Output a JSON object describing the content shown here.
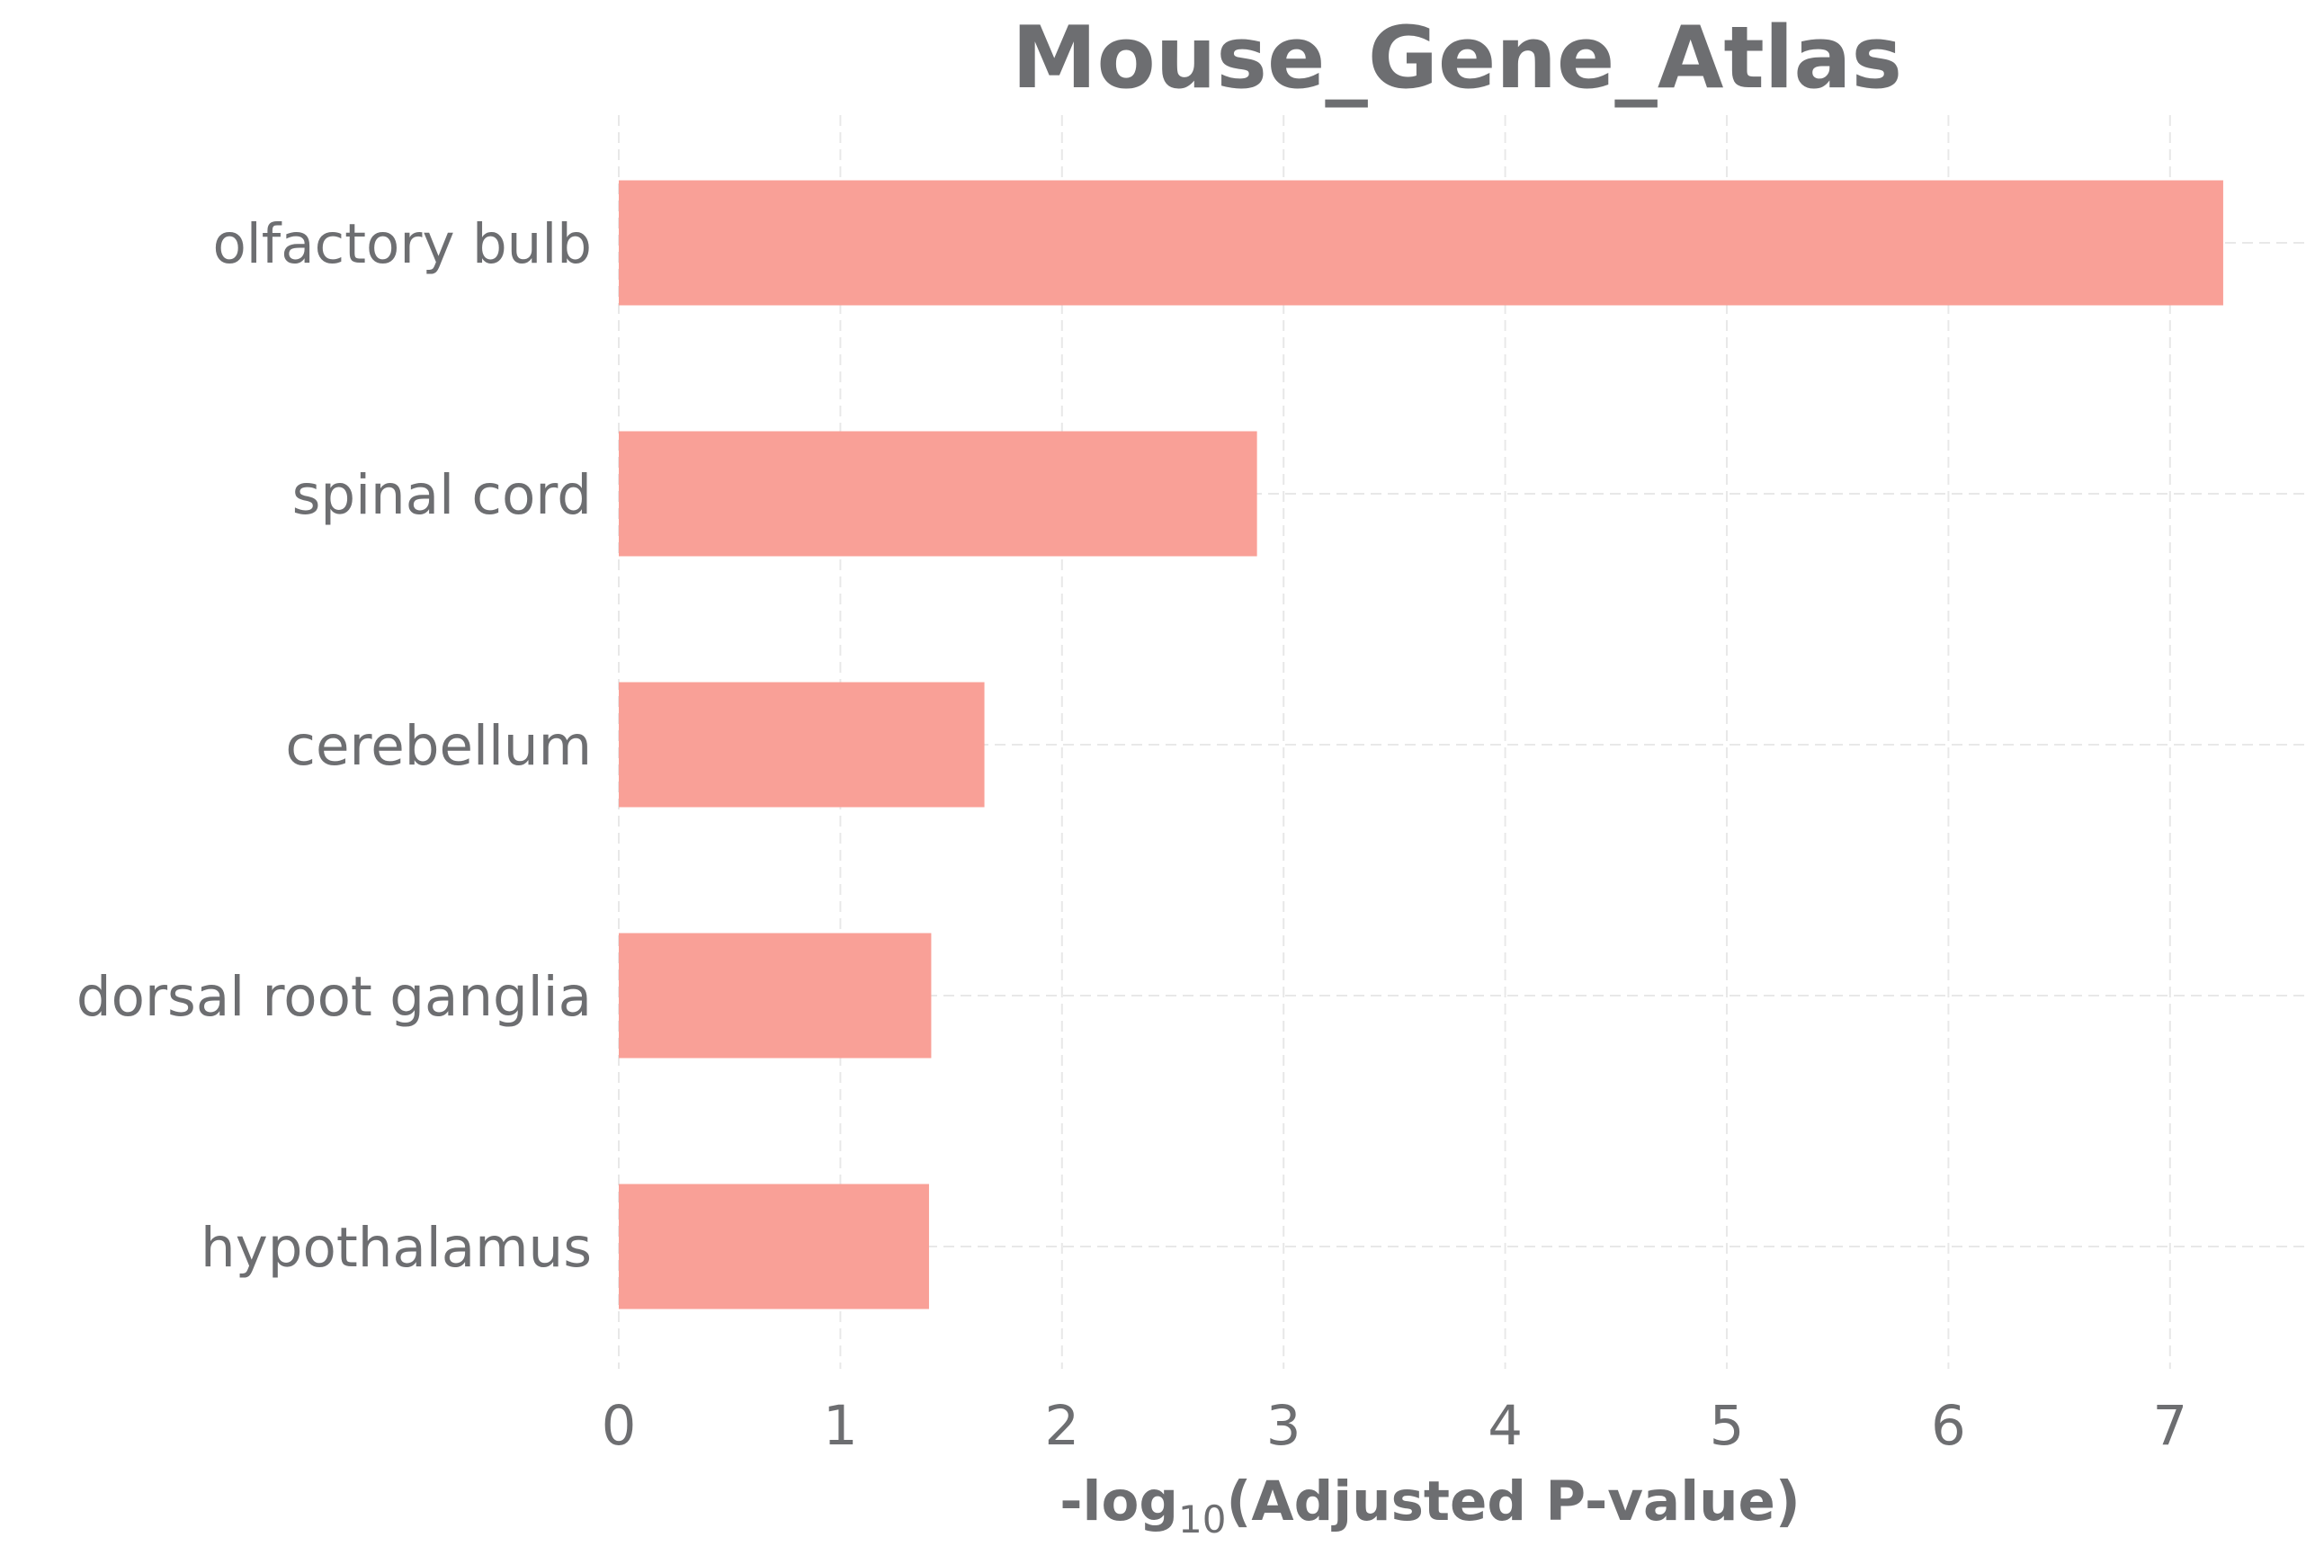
{
  "chart_data": {
    "type": "bar",
    "orientation": "horizontal",
    "title": "Mouse_Gene_Atlas",
    "xlabel": {
      "prefix": "-log",
      "subscript": "10",
      "suffix": "(Adjusted P-value)"
    },
    "ylabel": "",
    "categories": [
      "olfactory bulb",
      "spinal cord",
      "cerebellum",
      "dorsal root ganglia",
      "hypothalamus"
    ],
    "values": [
      7.24,
      2.88,
      1.65,
      1.41,
      1.4
    ],
    "xlim": [
      0,
      7.6
    ],
    "xticks": [
      0,
      1,
      2,
      3,
      4,
      5,
      6,
      7
    ],
    "grid": true,
    "colors": {
      "bar": "#f9a097",
      "text": "#6d6e71",
      "grid": "#e8e8e8"
    }
  }
}
